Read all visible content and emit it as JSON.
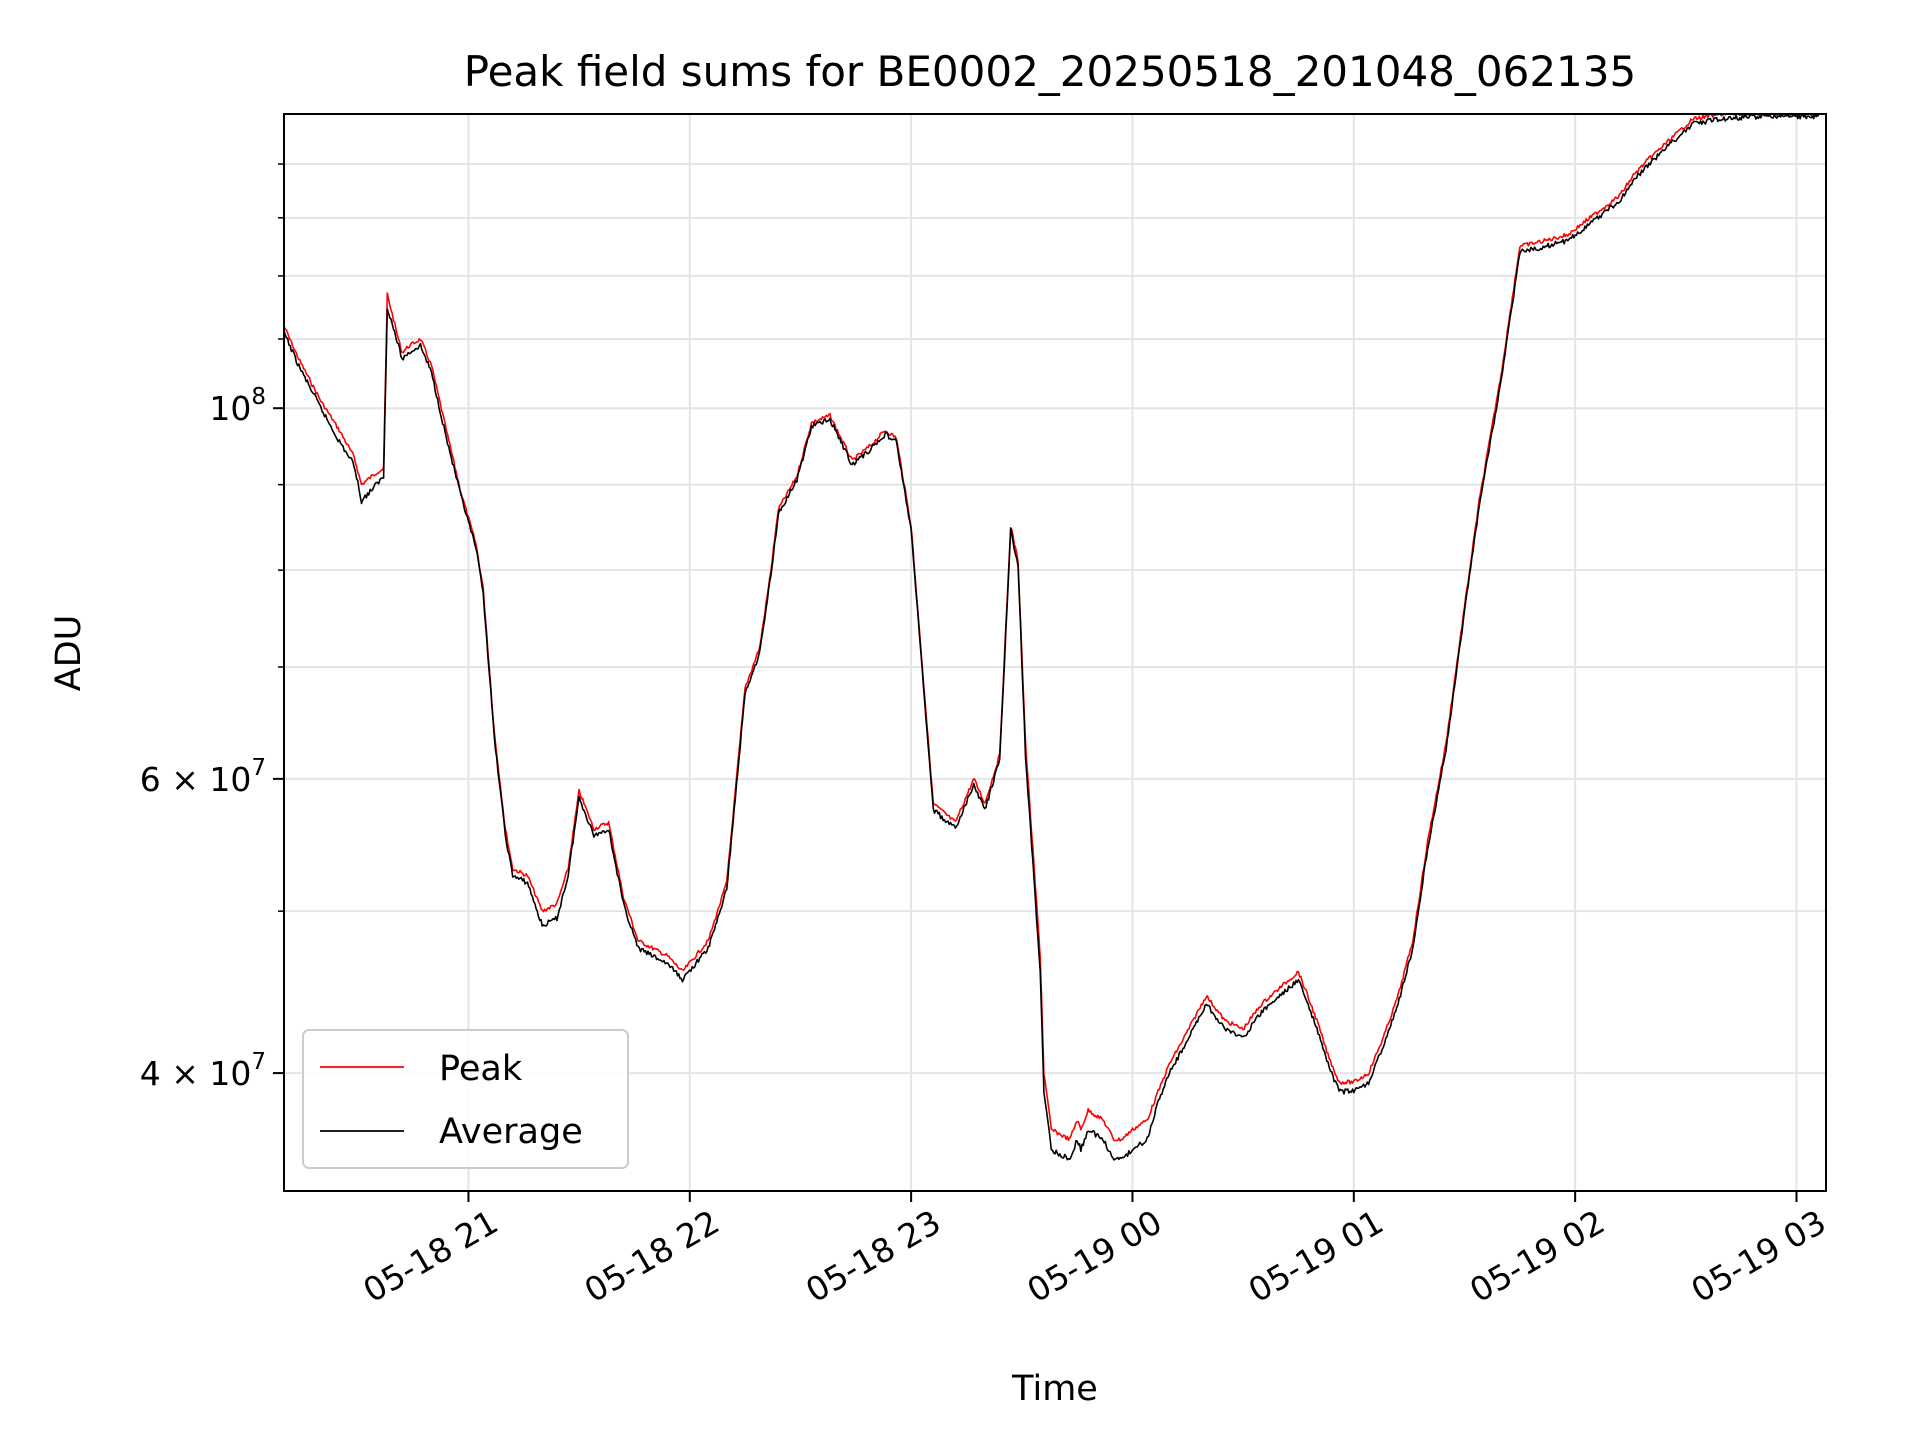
{
  "chart_data": {
    "type": "line",
    "title": "Peak field sums for BE0002_20250518_201048_062135",
    "xlabel": "Time",
    "ylabel": "ADU",
    "yscale": "log",
    "xlim": [
      "05-18 20:10",
      "05-19 03:08"
    ],
    "ylim": [
      34000000,
      150000000
    ],
    "grid": true,
    "legend_position": "lower left",
    "x_ticks": [
      "05-18 21",
      "05-18 22",
      "05-18 23",
      "05-19 00",
      "05-19 01",
      "05-19 02",
      "05-19 03"
    ],
    "y_ticks": [
      {
        "value": 100000000,
        "label_base": "10",
        "label_exp": "8",
        "label_coef": ""
      },
      {
        "value": 60000000,
        "label_base": "10",
        "label_exp": "7",
        "label_coef": "6 × "
      },
      {
        "value": 40000000,
        "label_base": "10",
        "label_exp": "7",
        "label_coef": "4 × "
      }
    ],
    "series": [
      {
        "name": "Peak",
        "color": "#ff0000",
        "x": [
          "05-18 20:10",
          "05-18 20:14",
          "05-18 20:20",
          "05-18 20:25",
          "05-18 20:29",
          "05-18 20:31",
          "05-18 20:35",
          "05-18 20:37",
          "05-18 20:38",
          "05-18 20:41",
          "05-18 20:42",
          "05-18 20:44",
          "05-18 20:47",
          "05-18 20:50",
          "05-18 20:54",
          "05-18 20:58",
          "05-18 21:02",
          "05-18 21:04",
          "05-18 21:07",
          "05-18 21:10",
          "05-18 21:12",
          "05-18 21:16",
          "05-18 21:20",
          "05-18 21:24",
          "05-18 21:27",
          "05-18 21:30",
          "05-18 21:34",
          "05-18 21:38",
          "05-18 21:42",
          "05-18 21:46",
          "05-18 21:50",
          "05-18 21:54",
          "05-18 21:58",
          "05-18 22:05",
          "05-18 22:10",
          "05-18 22:15",
          "05-18 22:19",
          "05-18 22:22",
          "05-18 22:24",
          "05-18 22:29",
          "05-18 22:33",
          "05-18 22:38",
          "05-18 22:44",
          "05-18 22:49",
          "05-18 22:53",
          "05-18 22:56",
          "05-18 23:00",
          "05-18 23:06",
          "05-18 23:12",
          "05-18 23:17",
          "05-18 23:20",
          "05-18 23:24",
          "05-18 23:27",
          "05-18 23:29",
          "05-18 23:31",
          "05-18 23:35",
          "05-18 23:36",
          "05-18 23:38",
          "05-18 23:43",
          "05-18 23:45",
          "05-18 23:46",
          "05-18 23:48",
          "05-18 23:52",
          "05-18 23:55",
          "05-18 23:57",
          "05-19 00:00",
          "05-19 00:04",
          "05-19 00:07",
          "05-19 00:10",
          "05-19 00:14",
          "05-19 00:20",
          "05-19 00:25",
          "05-19 00:30",
          "05-19 00:35",
          "05-19 00:40",
          "05-19 00:45",
          "05-19 00:50",
          "05-19 00:53",
          "05-19 00:56",
          "05-19 01:00",
          "05-19 01:04",
          "05-19 01:08",
          "05-19 01:12",
          "05-19 01:16",
          "05-19 01:20",
          "05-19 01:25",
          "05-19 01:30",
          "05-19 01:34",
          "05-19 01:40",
          "05-19 01:45",
          "05-19 01:52",
          "05-19 01:58",
          "05-19 02:02",
          "05-19 02:08",
          "05-19 02:12",
          "05-19 02:16",
          "05-19 02:20",
          "05-19 02:26",
          "05-19 02:29",
          "05-19 02:32",
          "05-19 02:40",
          "05-19 02:50",
          "05-19 03:00",
          "05-19 03:06"
        ],
        "y": [
          112000000,
          107000000,
          101000000,
          97000000,
          93500000,
          90000000,
          91500000,
          92000000,
          117000000,
          110000000,
          108000000,
          109000000,
          110000000,
          106000000,
          97000000,
          89000000,
          83000000,
          78000000,
          64000000,
          56000000,
          53000000,
          52500000,
          50000000,
          50500000,
          53000000,
          59000000,
          56000000,
          56500000,
          51000000,
          48000000,
          47500000,
          47000000,
          46000000,
          48000000,
          52000000,
          68000000,
          72000000,
          80000000,
          87000000,
          91000000,
          98000000,
          99000000,
          93000000,
          95000000,
          97000000,
          96000000,
          85000000,
          58000000,
          56500000,
          60000000,
          58000000,
          62000000,
          85000000,
          81000000,
          63000000,
          47000000,
          40000000,
          37000000,
          36500000,
          37500000,
          37000000,
          38000000,
          37500000,
          36500000,
          36500000,
          37000000,
          37500000,
          39000000,
          40500000,
          42000000,
          44500000,
          43000000,
          42500000,
          44000000,
          45000000,
          46000000,
          43000000,
          41000000,
          39500000,
          39500000,
          40000000,
          42000000,
          44500000,
          48000000,
          55000000,
          63000000,
          76000000,
          88000000,
          105000000,
          125000000,
          126000000,
          127000000,
          129000000,
          132000000,
          134000000,
          138000000,
          141000000,
          145000000,
          147000000,
          149000000,
          150000000,
          150000000,
          150000000,
          150000000
        ]
      },
      {
        "name": "Average",
        "color": "#000000",
        "x": [
          "05-18 20:10",
          "05-18 20:14",
          "05-18 20:20",
          "05-18 20:25",
          "05-18 20:29",
          "05-18 20:31",
          "05-18 20:35",
          "05-18 20:37",
          "05-18 20:38",
          "05-18 20:41",
          "05-18 20:42",
          "05-18 20:44",
          "05-18 20:47",
          "05-18 20:50",
          "05-18 20:54",
          "05-18 20:58",
          "05-18 21:02",
          "05-18 21:04",
          "05-18 21:07",
          "05-18 21:10",
          "05-18 21:12",
          "05-18 21:16",
          "05-18 21:20",
          "05-18 21:24",
          "05-18 21:27",
          "05-18 21:30",
          "05-18 21:34",
          "05-18 21:38",
          "05-18 21:42",
          "05-18 21:46",
          "05-18 21:50",
          "05-18 21:54",
          "05-18 21:58",
          "05-18 22:05",
          "05-18 22:10",
          "05-18 22:15",
          "05-18 22:19",
          "05-18 22:22",
          "05-18 22:24",
          "05-18 22:29",
          "05-18 22:33",
          "05-18 22:38",
          "05-18 22:44",
          "05-18 22:49",
          "05-18 22:53",
          "05-18 22:56",
          "05-18 23:00",
          "05-18 23:06",
          "05-18 23:12",
          "05-18 23:17",
          "05-18 23:20",
          "05-18 23:24",
          "05-18 23:27",
          "05-18 23:29",
          "05-18 23:31",
          "05-18 23:35",
          "05-18 23:36",
          "05-18 23:38",
          "05-18 23:43",
          "05-18 23:45",
          "05-18 23:46",
          "05-18 23:48",
          "05-18 23:52",
          "05-18 23:55",
          "05-18 23:57",
          "05-19 00:00",
          "05-19 00:04",
          "05-19 00:07",
          "05-19 00:10",
          "05-19 00:14",
          "05-19 00:20",
          "05-19 00:25",
          "05-19 00:30",
          "05-19 00:35",
          "05-19 00:40",
          "05-19 00:45",
          "05-19 00:50",
          "05-19 00:53",
          "05-19 00:56",
          "05-19 01:00",
          "05-19 01:04",
          "05-19 01:08",
          "05-19 01:12",
          "05-19 01:16",
          "05-19 01:20",
          "05-19 01:25",
          "05-19 01:30",
          "05-19 01:34",
          "05-19 01:40",
          "05-19 01:45",
          "05-19 01:52",
          "05-19 01:58",
          "05-19 02:02",
          "05-19 02:08",
          "05-19 02:12",
          "05-19 02:16",
          "05-19 02:20",
          "05-19 02:26",
          "05-19 02:29",
          "05-19 02:32",
          "05-19 02:40",
          "05-19 02:50",
          "05-19 03:00",
          "05-19 03:06"
        ],
        "y": [
          111000000,
          106000000,
          100000000,
          95500000,
          92500000,
          88000000,
          90000000,
          91000000,
          115000000,
          109000000,
          107000000,
          108000000,
          109000000,
          105000000,
          96000000,
          88500000,
          82500000,
          77500000,
          63500000,
          55500000,
          52500000,
          52000000,
          49000000,
          49500000,
          52500000,
          58500000,
          55500000,
          56000000,
          50500000,
          47500000,
          47000000,
          46500000,
          45500000,
          47500000,
          51500000,
          67500000,
          71500000,
          79500000,
          86500000,
          90500000,
          97500000,
          98500000,
          92500000,
          94500000,
          96500000,
          95500000,
          84500000,
          57500000,
          56000000,
          59500000,
          57500000,
          61500000,
          84500000,
          80500000,
          62000000,
          46000000,
          39000000,
          36000000,
          35500000,
          36500000,
          36000000,
          37000000,
          36500000,
          35500000,
          35500000,
          36000000,
          36500000,
          38500000,
          40000000,
          41500000,
          44000000,
          42500000,
          42000000,
          43500000,
          44500000,
          45500000,
          42500000,
          40500000,
          39000000,
          39000000,
          39500000,
          41500000,
          44000000,
          47500000,
          54500000,
          62500000,
          75500000,
          87500000,
          104000000,
          124000000,
          125000000,
          126000000,
          128000000,
          131000000,
          133000000,
          137000000,
          140000000,
          144000000,
          146000000,
          148000000,
          149000000,
          149500000,
          149500000,
          149500000
        ]
      }
    ]
  }
}
